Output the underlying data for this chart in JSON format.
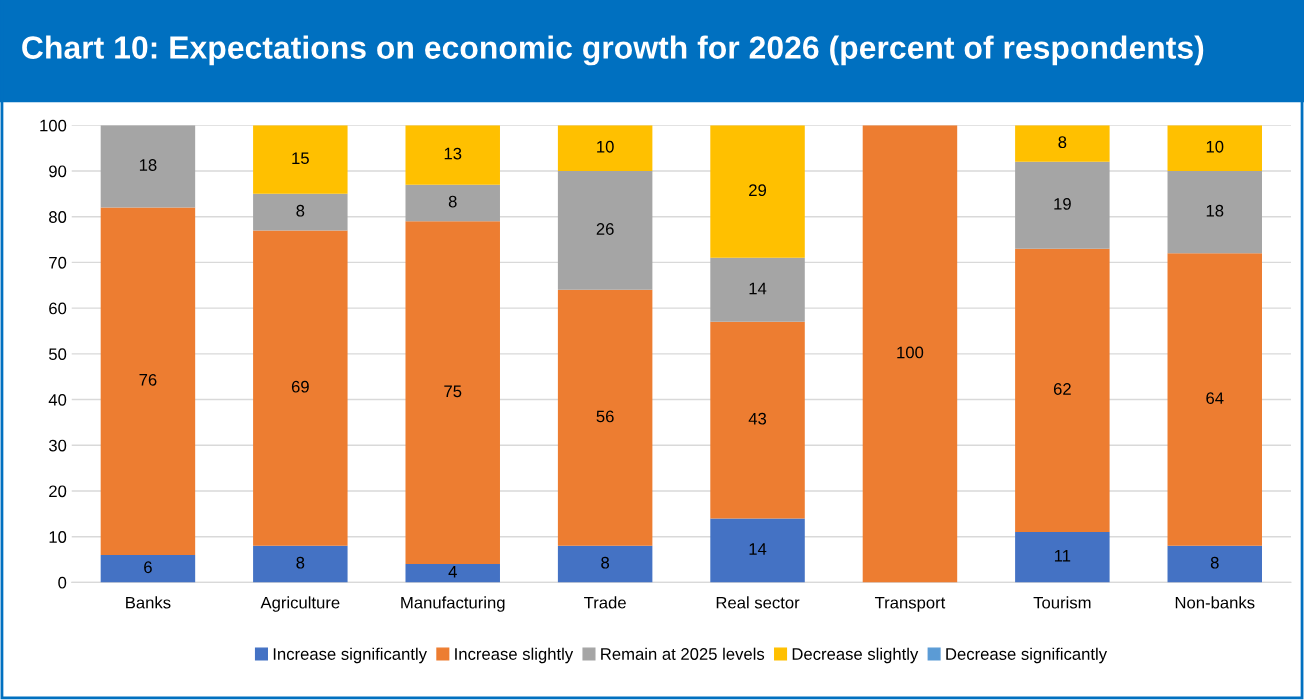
{
  "chart_data": {
    "type": "bar",
    "stacked": true,
    "title": "Chart 10: Expectations on economic growth for 2026 (percent of respondents)",
    "categories": [
      "Banks",
      "Agriculture",
      "Manufacturing",
      "Trade",
      "Real sector",
      "Transport",
      "Tourism",
      "Non-banks"
    ],
    "series": [
      {
        "name": "Increase significantly",
        "color": "#4472c4",
        "values": [
          6,
          8,
          4,
          8,
          14,
          0,
          11,
          8
        ],
        "value_labels": [
          "6",
          "8",
          "4",
          "8",
          "14",
          null,
          "11",
          "8"
        ]
      },
      {
        "name": "Increase slightly",
        "color": "#ed7d31",
        "values": [
          76,
          69,
          75,
          56,
          43,
          100,
          62,
          64
        ],
        "value_labels": [
          "76",
          "69",
          "75",
          "56",
          "43",
          "100",
          "62",
          "64"
        ]
      },
      {
        "name": "Remain at 2025 levels",
        "color": "#a5a5a5",
        "values": [
          18,
          8,
          8,
          26,
          14,
          0,
          19,
          18
        ],
        "value_labels": [
          "18",
          "8",
          "8",
          "26",
          "14",
          null,
          "19",
          "18"
        ]
      },
      {
        "name": "Decrease slightly",
        "color": "#ffc000",
        "values": [
          0,
          15,
          13,
          10,
          29,
          0,
          8,
          10
        ],
        "value_labels": [
          null,
          "15",
          "13",
          "10",
          "29",
          null,
          "8",
          "10"
        ]
      },
      {
        "name": "Decrease significantly",
        "color": "#5b9bd5",
        "values": [
          0,
          0,
          0,
          0,
          0,
          0,
          0,
          0
        ],
        "value_labels": [
          null,
          null,
          null,
          null,
          null,
          null,
          null,
          null
        ]
      }
    ],
    "ylim": [
      0,
      100
    ],
    "yticks": [
      0,
      10,
      20,
      30,
      40,
      50,
      60,
      70,
      80,
      90,
      100
    ],
    "grid": "y",
    "legend": "bottom"
  }
}
